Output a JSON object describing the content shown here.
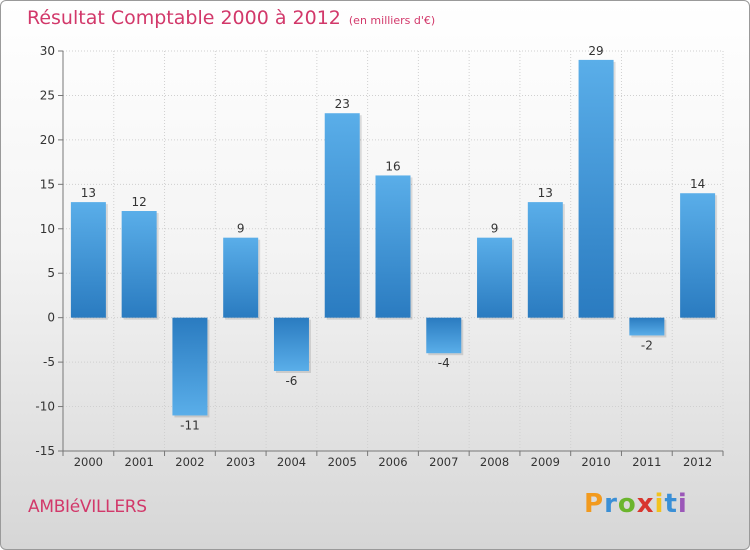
{
  "title": "Résultat Comptable 2000 à 2012",
  "subtitle": "(en milliers d'€)",
  "commune": "AMBIéVILLERS",
  "brand": {
    "letters": [
      "P",
      "r",
      "o",
      "x",
      "i",
      "t",
      "i"
    ],
    "colors": [
      "#f29a1e",
      "#3a8fd6",
      "#6bb52d",
      "#d8362e",
      "#f2c21e",
      "#3a8fd6",
      "#9b57b8"
    ]
  },
  "colors": {
    "bar_top": "#5aaee9",
    "bar_bottom": "#2a7bc0",
    "title": "#d2386a"
  },
  "chart_data": {
    "type": "bar",
    "categories": [
      "2000",
      "2001",
      "2002",
      "2003",
      "2004",
      "2005",
      "2006",
      "2007",
      "2008",
      "2009",
      "2010",
      "2011",
      "2012"
    ],
    "values": [
      13,
      12,
      -11,
      9,
      -6,
      23,
      16,
      -4,
      9,
      13,
      29,
      -2,
      14
    ],
    "data_labels": [
      "13",
      "12",
      "-11",
      "9",
      "-6",
      "23",
      "16",
      "-4",
      "9",
      "13",
      "29",
      "-2",
      "14"
    ],
    "ylim": [
      -15,
      30
    ],
    "yticks": [
      30,
      25,
      20,
      15,
      10,
      5,
      0,
      -5,
      -10,
      -15
    ],
    "ytick_labels": [
      "30",
      "25",
      "20",
      "15",
      "10",
      "5",
      "0",
      "-5",
      "-10",
      "-15"
    ],
    "grid": true,
    "xlabel": "",
    "ylabel": ""
  }
}
